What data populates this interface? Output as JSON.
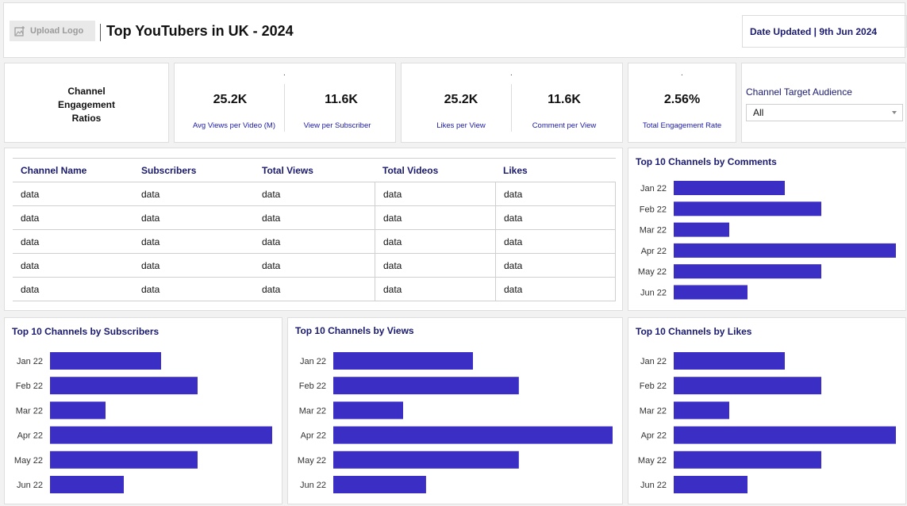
{
  "header": {
    "logo_label": "Upload Logo",
    "title": "Top YouTubers in UK - 2024",
    "date_updated": "Date Updated | 9th Jun 2024"
  },
  "ratios_label": [
    "Channel",
    "Engagement",
    "Ratios"
  ],
  "kpis": {
    "avg_views": {
      "value": "25.2K",
      "label": "Avg Views per Video (M)"
    },
    "view_per_sub": {
      "value": "11.6K",
      "label": "View per Subscriber"
    },
    "likes_per_view": {
      "value": "25.2K",
      "label": "Likes per View"
    },
    "comment_per_view": {
      "value": "11.6K",
      "label": "Comment per View"
    },
    "engagement_rate": {
      "value": "2.56%",
      "label": "Total Engagement Rate"
    }
  },
  "filter": {
    "label": "Channel Target Audience",
    "selected": "All"
  },
  "table": {
    "columns": [
      "Channel Name",
      "Subscribers",
      "Total Views",
      "Total Videos",
      "Likes"
    ],
    "rows": [
      [
        "data",
        "data",
        "data",
        "data",
        "data"
      ],
      [
        "data",
        "data",
        "data",
        "data",
        "data"
      ],
      [
        "data",
        "data",
        "data",
        "data",
        "data"
      ],
      [
        "data",
        "data",
        "data",
        "data",
        "data"
      ],
      [
        "data",
        "data",
        "data",
        "data",
        "data"
      ]
    ]
  },
  "colors": {
    "bar": "#3a2ec4",
    "title_text": "#1a1a6e",
    "label_text": "#1a1aa8"
  },
  "chart_data": [
    {
      "id": "comments",
      "type": "bar",
      "orientation": "horizontal",
      "title": "Top 10 Channels by Comments",
      "categories": [
        "Jan 22",
        "Feb 22",
        "Mar 22",
        "Apr 22",
        "May 22",
        "Jun 22"
      ],
      "values": [
        140,
        186,
        70,
        280,
        186,
        93
      ],
      "xlim": [
        0,
        280
      ],
      "grid": false
    },
    {
      "id": "subscribers",
      "type": "bar",
      "orientation": "horizontal",
      "title": "Top 10 Channels by Subscribers",
      "categories": [
        "Jan 22",
        "Feb 22",
        "Mar 22",
        "Apr 22",
        "May 22",
        "Jun 22"
      ],
      "values": [
        140,
        186,
        70,
        280,
        186,
        93
      ],
      "xlim": [
        0,
        280
      ],
      "grid": false
    },
    {
      "id": "views",
      "type": "bar",
      "orientation": "horizontal",
      "title": "Top 10 Channels by Views",
      "categories": [
        "Jan 22",
        "Feb 22",
        "Mar 22",
        "Apr 22",
        "May 22",
        "Jun 22"
      ],
      "values": [
        140,
        186,
        70,
        280,
        186,
        93
      ],
      "xlim": [
        0,
        280
      ],
      "grid": false
    },
    {
      "id": "likes",
      "type": "bar",
      "orientation": "horizontal",
      "title": "Top 10 Channels by Likes",
      "categories": [
        "Jan 22",
        "Feb 22",
        "Mar 22",
        "Apr 22",
        "May 22",
        "Jun 22"
      ],
      "values": [
        140,
        186,
        70,
        280,
        186,
        93
      ],
      "xlim": [
        0,
        280
      ],
      "grid": false
    }
  ]
}
